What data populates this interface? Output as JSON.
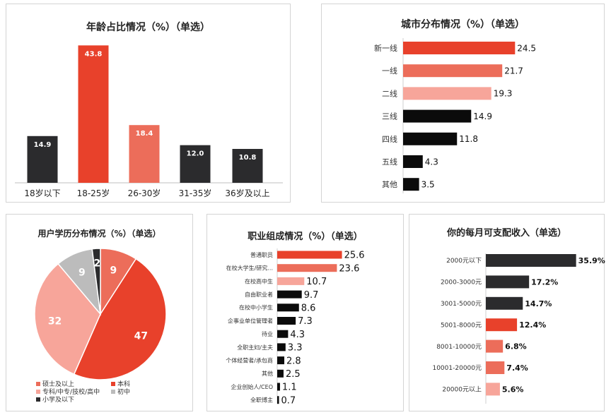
{
  "colors": {
    "red": "#e8412b",
    "salmon": "#ec6d5a",
    "pink": "#f7a59a",
    "dark": "#2b2b2d",
    "black": "#0b0b0b",
    "grey": "#bcbcbc"
  },
  "chart_data": [
    {
      "id": "age",
      "type": "bar",
      "title": "年龄占比情况（%）（单选）",
      "categories": [
        "18岁以下",
        "18-25岁",
        "26-30岁",
        "31-35岁",
        "36岁及以上"
      ],
      "values": [
        14.9,
        43.8,
        18.4,
        12.0,
        10.8
      ],
      "value_labels": [
        "14.9",
        "43.8",
        "18.4",
        "12.0",
        "10.8"
      ],
      "bar_colors": [
        "dark",
        "red",
        "salmon",
        "dark",
        "dark"
      ],
      "ylim": [
        0,
        45
      ]
    },
    {
      "id": "city",
      "type": "bar",
      "orientation": "horizontal",
      "title": "城市分布情况（%）（单选）",
      "categories": [
        "新一线",
        "一线",
        "二线",
        "三线",
        "四线",
        "五线",
        "其他"
      ],
      "values": [
        24.5,
        21.7,
        19.3,
        14.9,
        11.8,
        4.3,
        3.5
      ],
      "value_labels": [
        "24.5",
        "21.7",
        "19.3",
        "14.9",
        "11.8",
        "4.3",
        "3.5"
      ],
      "bar_colors": [
        "red",
        "salmon",
        "pink",
        "black",
        "black",
        "black",
        "black"
      ],
      "xlim": [
        0,
        26
      ]
    },
    {
      "id": "edu",
      "type": "pie",
      "title": "用户学历分布情况（%）（单选）",
      "slices": [
        {
          "label": "硕士及以上",
          "value": 9,
          "color": "salmon"
        },
        {
          "label": "本科",
          "value": 47,
          "color": "red"
        },
        {
          "label": "专科/中专/技校/高中",
          "value": 32,
          "color": "pink"
        },
        {
          "label": "初中",
          "value": 9,
          "color": "grey"
        },
        {
          "label": "小学及以下",
          "value": 2,
          "color": "dark"
        }
      ],
      "legend": "bottom"
    },
    {
      "id": "job",
      "type": "bar",
      "orientation": "horizontal",
      "title": "职业组成情况（%）（单选）",
      "categories": [
        "普通职员",
        "在校大学生/研究...",
        "在校高中生",
        "自由职业者",
        "在校中小学生",
        "企事业单位管理者",
        "待业",
        "全职主妇/主夫",
        "个体经营者/承包商",
        "其他",
        "企业创始人/CEO",
        "全职博主"
      ],
      "values": [
        25.6,
        23.6,
        10.7,
        9.7,
        8.6,
        7.3,
        4.3,
        3.3,
        2.8,
        2.5,
        1.1,
        0.7
      ],
      "value_labels": [
        "25.6",
        "23.6",
        "10.7",
        "9.7",
        "8.6",
        "7.3",
        "4.3",
        "3.3",
        "2.8",
        "2.5",
        "1.1",
        "0.7"
      ],
      "bar_colors": [
        "red",
        "salmon",
        "pink",
        "black",
        "black",
        "black",
        "black",
        "black",
        "black",
        "black",
        "black",
        "black"
      ],
      "xlim": [
        0,
        26
      ]
    },
    {
      "id": "income",
      "type": "bar",
      "orientation": "horizontal",
      "title": "你的每月可支配收入（单选）",
      "categories": [
        "2000元以下",
        "2000-3000元",
        "3001-5000元",
        "5001-8000元",
        "8001-10000元",
        "10001-20000元",
        "20000元以上"
      ],
      "values": [
        35.9,
        17.2,
        14.7,
        12.4,
        6.8,
        7.4,
        5.6
      ],
      "value_labels": [
        "35.9%",
        "17.2%",
        "14.7%",
        "12.4%",
        "6.8%",
        "7.4%",
        "5.6%"
      ],
      "bar_colors": [
        "dark",
        "dark",
        "dark",
        "red",
        "salmon",
        "salmon",
        "pink"
      ],
      "xlim": [
        0,
        36
      ]
    }
  ]
}
